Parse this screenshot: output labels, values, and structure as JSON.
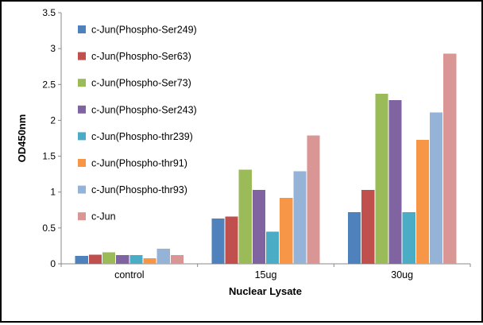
{
  "chart_data": {
    "type": "bar",
    "title": "",
    "xlabel": "Nuclear Lysate",
    "ylabel": "OD450nm",
    "ylim": [
      0,
      3.5
    ],
    "ytick_step": 0.5,
    "grid": false,
    "legend_position": "top-left-inside",
    "axis_color": "#898989",
    "categories": [
      "control",
      "15ug",
      "30ug"
    ],
    "series": [
      {
        "name": "c-Jun(Phospho-Ser249)",
        "color": "#4F81BD",
        "values": [
          0.11,
          0.63,
          0.72
        ]
      },
      {
        "name": "c-Jun(Phospho-Ser63)",
        "color": "#C0504D",
        "values": [
          0.13,
          0.66,
          1.03
        ]
      },
      {
        "name": "c-Jun(Phospho-Ser73)",
        "color": "#9BBB59",
        "values": [
          0.16,
          1.31,
          2.37
        ]
      },
      {
        "name": "c-Jun(Phospho-Ser243)",
        "color": "#8064A2",
        "values": [
          0.12,
          1.03,
          2.28
        ]
      },
      {
        "name": "c-Jun(Phospho-thr239)",
        "color": "#4BACC6",
        "values": [
          0.12,
          0.45,
          0.72
        ]
      },
      {
        "name": "c-Jun(Phospho-thr91)",
        "color": "#F79646",
        "values": [
          0.08,
          0.92,
          1.73
        ]
      },
      {
        "name": "c-Jun(Phospho-thr93)",
        "color": "#95B3D7",
        "values": [
          0.21,
          1.29,
          2.11
        ]
      },
      {
        "name": "c-Jun",
        "color": "#D99694",
        "values": [
          0.12,
          1.79,
          2.93
        ]
      }
    ]
  }
}
